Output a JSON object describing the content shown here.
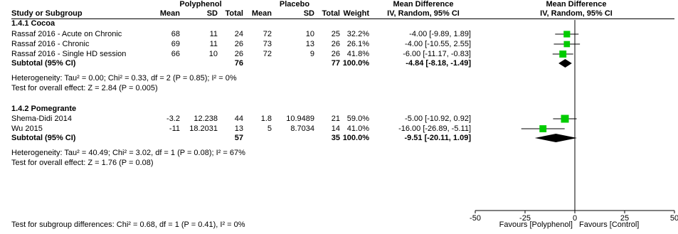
{
  "header": {
    "polyphenol": "Polyphenol",
    "placebo": "Placebo",
    "md_top": "Mean Difference",
    "md_top_plot": "Mean Difference",
    "study": "Study or Subgroup",
    "mean1": "Mean",
    "sd1": "SD",
    "total1": "Total",
    "mean2": "Mean",
    "sd2": "SD",
    "total2": "Total",
    "weight": "Weight",
    "ci": "IV, Random, 95% CI",
    "ci_plot": "IV, Random, 95% CI"
  },
  "subgroups": [
    {
      "title": "1.4.1 Cocoa",
      "studies": [
        {
          "name": "Rassaf 2016 - Acute on Chronic",
          "mean1": "68",
          "sd1": "11",
          "n1": "24",
          "mean2": "72",
          "sd2": "10",
          "n2": "25",
          "weight": "32.2%",
          "ci": "-4.00 [-9.89, 1.89]"
        },
        {
          "name": "Rassaf 2016 - Chronic",
          "mean1": "69",
          "sd1": "11",
          "n1": "26",
          "mean2": "73",
          "sd2": "13",
          "n2": "26",
          "weight": "26.1%",
          "ci": "-4.00 [-10.55, 2.55]"
        },
        {
          "name": "Rassaf 2016 - Single HD session",
          "mean1": "66",
          "sd1": "10",
          "n1": "26",
          "mean2": "72",
          "sd2": "9",
          "n2": "26",
          "weight": "41.8%",
          "ci": "-6.00 [-11.17, -0.83]"
        }
      ],
      "subtotal": {
        "label": "Subtotal (95% CI)",
        "n1": "76",
        "n2": "77",
        "weight": "100.0%",
        "ci": "-4.84 [-8.18, -1.49]"
      },
      "heterogeneity": "Heterogeneity: Tau² = 0.00; Chi² = 0.33, df = 2 (P = 0.85); I² = 0%",
      "overall": "Test for overall effect: Z = 2.84 (P = 0.005)"
    },
    {
      "title": "1.4.2 Pomegrante",
      "studies": [
        {
          "name": "Shema-Didi 2014",
          "mean1": "-3.2",
          "sd1": "12.238",
          "n1": "44",
          "mean2": "1.8",
          "sd2": "10.9489",
          "n2": "21",
          "weight": "59.0%",
          "ci": "-5.00 [-10.92, 0.92]"
        },
        {
          "name": "Wu 2015",
          "mean1": "-11",
          "sd1": "18.2031",
          "n1": "13",
          "mean2": "5",
          "sd2": "8.7034",
          "n2": "14",
          "weight": "41.0%",
          "ci": "-16.00 [-26.89, -5.11]"
        }
      ],
      "subtotal": {
        "label": "Subtotal (95% CI)",
        "n1": "57",
        "n2": "35",
        "weight": "100.0%",
        "ci": "-9.51 [-20.11, 1.09]"
      },
      "heterogeneity": "Heterogeneity: Tau² = 40.49; Chi² = 3.02, df = 1 (P = 0.08); I² = 67%",
      "overall": "Test for overall effect: Z = 1.76 (P = 0.08)"
    }
  ],
  "footer": {
    "subgroup_test": "Test for subgroup differences: Chi² = 0.68, df = 1 (P = 0.41), I² = 0%",
    "favours_left": "Favours [Polyphenol]",
    "favours_right": "Favours [Control]"
  },
  "colors": {
    "marker": "#00cc00",
    "diamond": "#000000",
    "line": "#000000"
  },
  "chart_data": {
    "type": "forest",
    "xlim": [
      -50,
      50
    ],
    "ticks": [
      -50,
      -25,
      0,
      25,
      50
    ],
    "xlabel_left": "Favours [Polyphenol]",
    "xlabel_right": "Favours [Control]",
    "studies": [
      {
        "name": "Rassaf 2016 - Acute on Chronic",
        "est": -4.0,
        "lo": -9.89,
        "hi": 1.89,
        "weight": 32.2
      },
      {
        "name": "Rassaf 2016 - Chronic",
        "est": -4.0,
        "lo": -10.55,
        "hi": 2.55,
        "weight": 26.1
      },
      {
        "name": "Rassaf 2016 - Single HD session",
        "est": -6.0,
        "lo": -11.17,
        "hi": -0.83,
        "weight": 41.8
      },
      {
        "name": "Shema-Didi 2014",
        "est": -5.0,
        "lo": -10.92,
        "hi": 0.92,
        "weight": 59.0
      },
      {
        "name": "Wu 2015",
        "est": -16.0,
        "lo": -26.89,
        "hi": -5.11,
        "weight": 41.0
      }
    ],
    "subtotals": [
      {
        "name": "Subtotal 1.4.1 Cocoa",
        "est": -4.84,
        "lo": -8.18,
        "hi": -1.49
      },
      {
        "name": "Subtotal 1.4.2 Pomegrante",
        "est": -9.51,
        "lo": -20.11,
        "hi": 1.09
      }
    ]
  }
}
